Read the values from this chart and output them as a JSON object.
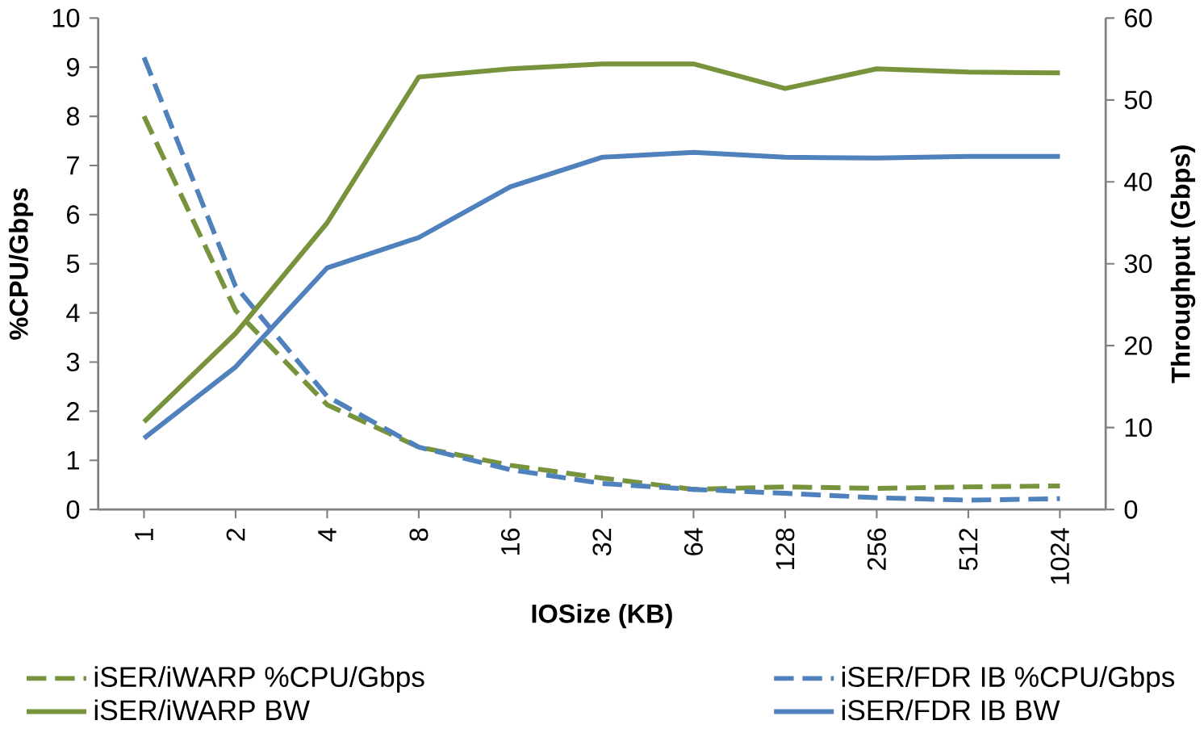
{
  "chart_data": {
    "type": "line",
    "xlabel": "IOSize (KB)",
    "ylabel": "%CPU/Gbps",
    "y2label": "Throughput (Gbps)",
    "categories": [
      "1",
      "2",
      "4",
      "8",
      "16",
      "32",
      "64",
      "128",
      "256",
      "512",
      "1024"
    ],
    "ylim": [
      0,
      10
    ],
    "yticks": [
      0,
      1,
      2,
      3,
      4,
      5,
      6,
      7,
      8,
      9,
      10
    ],
    "y2lim": [
      0,
      60
    ],
    "y2ticks": [
      0,
      10,
      20,
      30,
      40,
      50,
      60
    ],
    "legend": "bottom",
    "grid": false,
    "series": [
      {
        "name": "iSER/iWARP %CPU/Gbps",
        "color": "#77933c",
        "line_style": "dashed",
        "values": [
          8.0,
          4.05,
          2.13,
          1.27,
          0.9,
          0.64,
          0.41,
          0.46,
          0.43,
          0.46,
          0.48
        ]
      },
      {
        "name": "iSER/FDR IB %CPU/Gbps",
        "color": "#4f81bd",
        "line_style": "dashed",
        "values": [
          9.2,
          4.54,
          2.3,
          1.27,
          0.81,
          0.53,
          0.41,
          0.33,
          0.24,
          0.19,
          0.22
        ]
      },
      {
        "name": "iSER/iWARP BW",
        "color": "#77933c",
        "line_style": "solid",
        "axis": "y2",
        "values": [
          10.7,
          21.5,
          35,
          52.8,
          53.8,
          54.4,
          54.4,
          51.4,
          53.8,
          53.4,
          53.3
        ]
      },
      {
        "name": "iSER/FDR IB BW",
        "color": "#4f81bd",
        "line_style": "solid",
        "axis": "y2",
        "values": [
          8.7,
          17.4,
          29.5,
          33.2,
          39.4,
          43,
          43.6,
          43,
          42.9,
          43.1,
          43.1
        ]
      }
    ]
  }
}
